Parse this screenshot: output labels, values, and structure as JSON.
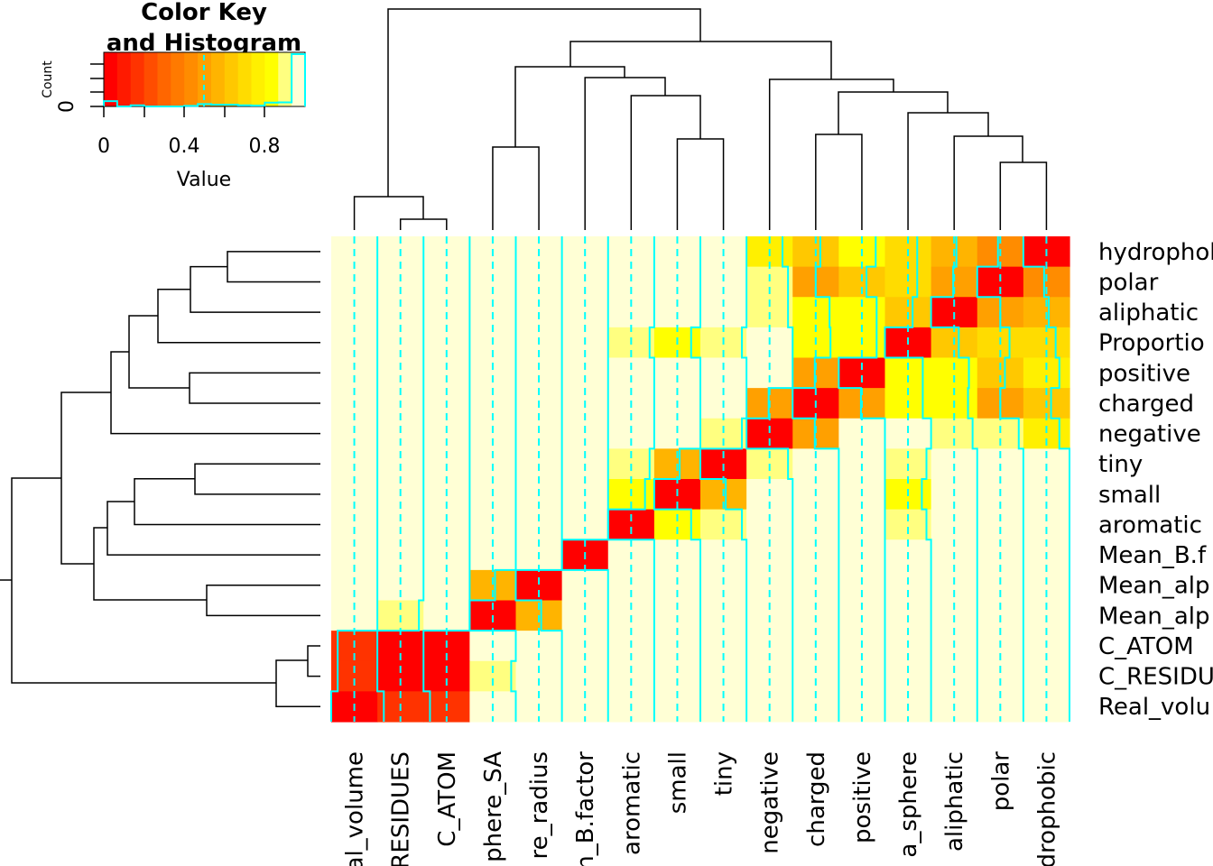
{
  "chart_data": {
    "type": "heatmap",
    "title": "",
    "row_labels": [
      "hydrophobic",
      "polar",
      "aliphatic",
      "Proportio",
      "positive",
      "charged",
      "negative",
      "tiny",
      "small",
      "aromatic",
      "Mean_B.f",
      "Mean_alp",
      "Mean_alp",
      "C_ATOM",
      "C_RESIDU",
      "Real_volu"
    ],
    "col_labels": [
      "Real_volume",
      "C_RESIDUES",
      "C_ATOM",
      "phere_SA",
      "re_radius",
      "n_B.factor",
      "aromatic",
      "small",
      "tiny",
      "negative",
      "charged",
      "positive",
      "a_sphere",
      "aliphatic",
      "polar",
      "drophobic"
    ],
    "values": [
      [
        1,
        1,
        1,
        1,
        1,
        1,
        1,
        1,
        1,
        0.78,
        0.6,
        0.8,
        0.7,
        0.55,
        0.45,
        0
      ],
      [
        1,
        1,
        1,
        1,
        1,
        1,
        1,
        1,
        1,
        0.9,
        0.5,
        0.6,
        0.7,
        0.48,
        0,
        0.45
      ],
      [
        1,
        1,
        1,
        1,
        1,
        1,
        1,
        1,
        1,
        0.9,
        0.8,
        0.82,
        0.6,
        0,
        0.5,
        0.55
      ],
      [
        1,
        1,
        1,
        1,
        1,
        1,
        0.9,
        0.8,
        0.9,
        1,
        0.82,
        0.82,
        0,
        0.6,
        0.7,
        0.7
      ],
      [
        1,
        1,
        1,
        1,
        1,
        1,
        1,
        1,
        1,
        1,
        0.48,
        0,
        0.82,
        0.82,
        0.6,
        0.78
      ],
      [
        1,
        1,
        1,
        1,
        1,
        1,
        1,
        1,
        1,
        0.48,
        0,
        0.48,
        0.82,
        0.8,
        0.5,
        0.6
      ],
      [
        1,
        1,
        1,
        1,
        1,
        1,
        1,
        1,
        0.9,
        0,
        0.48,
        1,
        1,
        0.9,
        0.9,
        0.78
      ],
      [
        1,
        1,
        1,
        1,
        1,
        1,
        0.9,
        0.55,
        0,
        0.9,
        1,
        1,
        0.9,
        1,
        1,
        1
      ],
      [
        1,
        1,
        1,
        1,
        1,
        1,
        0.8,
        0,
        0.55,
        1,
        1,
        1,
        0.8,
        1,
        1,
        1
      ],
      [
        1,
        1,
        1,
        1,
        1,
        1,
        0,
        0.8,
        0.9,
        1,
        1,
        1,
        0.9,
        1,
        1,
        1
      ],
      [
        1,
        1,
        1,
        1,
        1,
        0,
        1,
        1,
        1,
        1,
        1,
        1,
        1,
        1,
        1,
        1
      ],
      [
        1,
        1,
        1,
        0.55,
        0,
        1,
        1,
        1,
        1,
        1,
        1,
        1,
        1,
        1,
        1,
        1
      ],
      [
        1,
        0.9,
        1,
        0,
        0.55,
        1,
        1,
        1,
        1,
        1,
        1,
        1,
        1,
        1,
        1,
        1
      ],
      [
        0.14,
        0,
        0,
        1,
        1,
        1,
        1,
        1,
        1,
        1,
        1,
        1,
        1,
        1,
        1,
        1
      ],
      [
        0.14,
        0,
        0,
        0.9,
        1,
        1,
        1,
        1,
        1,
        1,
        1,
        1,
        1,
        1,
        1,
        1
      ],
      [
        0,
        0.14,
        0.14,
        1,
        1,
        1,
        1,
        1,
        1,
        1,
        1,
        1,
        1,
        1,
        1,
        1
      ]
    ],
    "value_range": [
      0,
      1
    ],
    "palette": [
      "#FF0000",
      "#FF1A00",
      "#FF3300",
      "#FF4D00",
      "#FF6600",
      "#FF7A00",
      "#FF8C00",
      "#FFA000",
      "#FFB400",
      "#FFC800",
      "#FFDC00",
      "#FFF000",
      "#FFFF00",
      "#FFFF80",
      "#FFFFD5"
    ],
    "trace_color": "#00FFFF",
    "trace_center": 0.5,
    "key": {
      "title_line1": "Color Key",
      "title_line2": "and Histogram",
      "xlabel": "Value",
      "ylabel": "Count",
      "y_tick": "0",
      "x_ticks": [
        "0",
        "0.4",
        "0.8"
      ]
    }
  }
}
